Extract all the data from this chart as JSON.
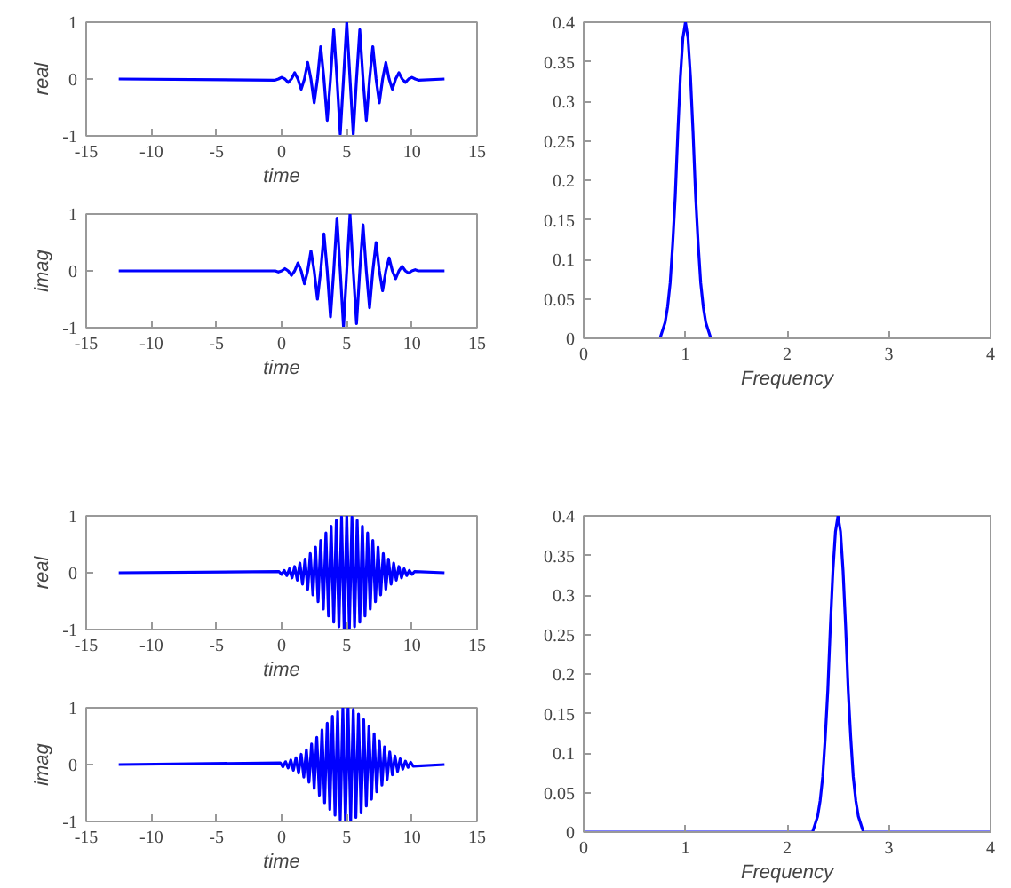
{
  "chart_data": [
    {
      "type": "line",
      "ylabel": "real",
      "xlabel": "time",
      "xlim": [
        -15,
        15
      ],
      "ylim": [
        -1,
        1
      ],
      "xticks": [
        -15,
        -10,
        -5,
        0,
        5,
        10,
        15
      ],
      "yticks": [
        -1,
        0,
        1
      ],
      "series": [
        {
          "color": "#0000ff",
          "x": [
            -12.5,
            -0.5,
            -0.25,
            0,
            0.25,
            0.5,
            0.75,
            1,
            1.25,
            1.5,
            1.75,
            2,
            2.25,
            2.5,
            2.75,
            3,
            3.25,
            3.5,
            3.75,
            4,
            4.25,
            4.5,
            4.75,
            5,
            5.25,
            5.5,
            5.75,
            6,
            6.25,
            6.5,
            6.75,
            7,
            7.25,
            7.5,
            7.75,
            8,
            8.25,
            8.5,
            8.75,
            9,
            9.25,
            9.5,
            9.75,
            10,
            10.25,
            10.5,
            12.5
          ],
          "values": [
            0,
            -0.02,
            0,
            0.03,
            0,
            -0.06,
            0,
            0.11,
            0,
            -0.18,
            0,
            0.29,
            0,
            -0.42,
            0,
            0.57,
            0,
            -0.73,
            0,
            0.87,
            0,
            -0.97,
            0,
            1,
            0,
            -0.97,
            0,
            0.87,
            0,
            -0.73,
            0,
            0.57,
            0,
            -0.42,
            0,
            0.29,
            0,
            -0.18,
            0,
            0.11,
            0,
            -0.06,
            0,
            0.03,
            0,
            -0.02,
            0
          ]
        }
      ]
    },
    {
      "type": "line",
      "ylabel": "imag",
      "xlabel": "time",
      "xlim": [
        -15,
        15
      ],
      "ylim": [
        -1,
        1
      ],
      "xticks": [
        -15,
        -10,
        -5,
        0,
        5,
        10,
        15
      ],
      "yticks": [
        -1,
        0,
        1
      ],
      "series": [
        {
          "color": "#0000ff",
          "x": [
            -12.5,
            -0.5,
            -0.25,
            0,
            0.25,
            0.5,
            0.75,
            1,
            1.25,
            1.5,
            1.75,
            2,
            2.25,
            2.5,
            2.75,
            3,
            3.25,
            3.5,
            3.75,
            4,
            4.25,
            4.5,
            4.75,
            5,
            5.25,
            5.5,
            5.75,
            6,
            6.25,
            6.5,
            6.75,
            7,
            7.25,
            7.5,
            7.75,
            8,
            8.25,
            8.5,
            8.75,
            9,
            9.25,
            9.5,
            9.75,
            10,
            10.25,
            10.5,
            12.5
          ],
          "values": [
            0,
            0,
            -0.02,
            0,
            0.04,
            0,
            -0.08,
            0,
            0.14,
            0,
            -0.23,
            0,
            0.35,
            0,
            -0.5,
            0,
            0.65,
            0,
            -0.81,
            0,
            0.93,
            0,
            -0.99,
            0,
            0.99,
            0,
            -0.93,
            0,
            0.81,
            0,
            -0.65,
            0,
            0.5,
            0,
            -0.35,
            0,
            0.23,
            0,
            -0.14,
            0,
            0.08,
            0,
            -0.04,
            0,
            0.02,
            0,
            0
          ]
        }
      ]
    },
    {
      "type": "line",
      "xlabel": "Frequency",
      "xlim": [
        0,
        4
      ],
      "ylim": [
        0,
        0.4
      ],
      "xticks": [
        0,
        1,
        2,
        3,
        4
      ],
      "yticks": [
        0,
        0.05,
        0.1,
        0.15,
        0.2,
        0.25,
        0.3,
        0.35,
        0.4
      ],
      "series": [
        {
          "color": "#0000ff",
          "x": [
            0,
            0.7,
            0.75,
            0.8,
            0.825,
            0.85,
            0.875,
            0.9,
            0.925,
            0.95,
            0.975,
            1,
            1.025,
            1.05,
            1.075,
            1.1,
            1.125,
            1.15,
            1.175,
            1.2,
            1.25,
            1.3,
            4
          ],
          "values": [
            0,
            0,
            0,
            0.02,
            0.04,
            0.07,
            0.12,
            0.18,
            0.26,
            0.33,
            0.38,
            0.4,
            0.38,
            0.33,
            0.26,
            0.18,
            0.12,
            0.07,
            0.04,
            0.02,
            0,
            0,
            0
          ]
        }
      ]
    },
    {
      "type": "line",
      "ylabel": "real",
      "xlabel": "time",
      "xlim": [
        -15,
        15
      ],
      "ylim": [
        -1,
        1
      ],
      "xticks": [
        -15,
        -10,
        -5,
        0,
        5,
        10,
        15
      ],
      "yticks": [
        -1,
        0,
        1
      ],
      "series": [
        {
          "color": "#0000ff",
          "x": [
            -12.5,
            -0.2,
            0,
            0.2,
            0.4,
            0.6,
            0.8,
            1.0,
            1.2,
            1.4,
            1.6,
            1.8,
            2.0,
            2.2,
            2.4,
            2.6,
            2.8,
            3.0,
            3.2,
            3.4,
            3.6,
            3.8,
            4.0,
            4.2,
            4.4,
            4.6,
            4.8,
            5.0,
            5.2,
            5.4,
            5.6,
            5.8,
            6.0,
            6.2,
            6.4,
            6.6,
            6.8,
            7.0,
            7.2,
            7.4,
            7.6,
            7.8,
            8.0,
            8.2,
            8.4,
            8.6,
            8.8,
            9.0,
            9.2,
            9.4,
            9.6,
            9.8,
            10.0,
            10.2,
            12.5
          ],
          "values": [
            0,
            0.02,
            -0.03,
            0.04,
            -0.05,
            0.07,
            -0.09,
            0.11,
            -0.13,
            0.17,
            -0.2,
            0.24,
            -0.29,
            0.34,
            -0.39,
            0.45,
            -0.51,
            0.57,
            -0.64,
            0.7,
            -0.76,
            0.82,
            -0.87,
            0.92,
            -0.95,
            0.98,
            -0.99,
            1,
            -0.99,
            0.98,
            -0.95,
            0.92,
            -0.87,
            0.82,
            -0.76,
            0.7,
            -0.64,
            0.57,
            -0.51,
            0.45,
            -0.39,
            0.34,
            -0.29,
            0.24,
            -0.2,
            0.17,
            -0.13,
            0.11,
            -0.09,
            0.07,
            -0.05,
            0.04,
            -0.03,
            0.02,
            0
          ]
        }
      ]
    },
    {
      "type": "line",
      "ylabel": "imag",
      "xlabel": "time",
      "xlim": [
        -15,
        15
      ],
      "ylim": [
        -1,
        1
      ],
      "xticks": [
        -15,
        -10,
        -5,
        0,
        5,
        10,
        15
      ],
      "yticks": [
        -1,
        0,
        1
      ],
      "series": [
        {
          "color": "#0000ff",
          "x": [
            -12.5,
            -0.1,
            0.1,
            0.3,
            0.5,
            0.7,
            0.9,
            1.1,
            1.3,
            1.5,
            1.7,
            1.9,
            2.1,
            2.3,
            2.5,
            2.7,
            2.9,
            3.1,
            3.3,
            3.5,
            3.7,
            3.9,
            4.1,
            4.3,
            4.5,
            4.7,
            4.9,
            5.1,
            5.3,
            5.5,
            5.7,
            5.9,
            6.1,
            6.3,
            6.5,
            6.7,
            6.9,
            7.1,
            7.3,
            7.5,
            7.7,
            7.9,
            8.1,
            8.3,
            8.5,
            8.7,
            8.9,
            9.1,
            9.3,
            9.5,
            9.7,
            9.9,
            10.1,
            12.5
          ],
          "values": [
            0,
            0.03,
            -0.04,
            0.05,
            -0.06,
            0.08,
            -0.1,
            0.12,
            -0.15,
            0.18,
            -0.22,
            0.26,
            -0.31,
            0.36,
            -0.42,
            0.48,
            -0.54,
            0.61,
            -0.67,
            0.73,
            -0.79,
            0.85,
            -0.89,
            0.93,
            -0.97,
            0.99,
            -1,
            1,
            -0.99,
            0.97,
            -0.93,
            0.89,
            -0.85,
            0.79,
            -0.73,
            0.67,
            -0.61,
            0.54,
            -0.48,
            0.42,
            -0.36,
            0.31,
            -0.26,
            0.22,
            -0.18,
            0.15,
            -0.12,
            0.1,
            -0.08,
            0.06,
            -0.05,
            0.04,
            -0.03,
            0
          ]
        }
      ]
    },
    {
      "type": "line",
      "xlabel": "Frequency",
      "xlim": [
        0,
        4
      ],
      "ylim": [
        0,
        0.4
      ],
      "xticks": [
        0,
        1,
        2,
        3,
        4
      ],
      "yticks": [
        0,
        0.05,
        0.1,
        0.15,
        0.2,
        0.25,
        0.3,
        0.35,
        0.4
      ],
      "series": [
        {
          "color": "#0000ff",
          "x": [
            0,
            2.2,
            2.25,
            2.3,
            2.325,
            2.35,
            2.375,
            2.4,
            2.425,
            2.45,
            2.475,
            2.5,
            2.525,
            2.55,
            2.575,
            2.6,
            2.625,
            2.65,
            2.675,
            2.7,
            2.75,
            2.8,
            4
          ],
          "values": [
            0,
            0,
            0,
            0.02,
            0.04,
            0.07,
            0.12,
            0.18,
            0.26,
            0.33,
            0.38,
            0.4,
            0.38,
            0.33,
            0.26,
            0.18,
            0.12,
            0.07,
            0.04,
            0.02,
            0,
            0,
            0
          ]
        }
      ]
    }
  ]
}
